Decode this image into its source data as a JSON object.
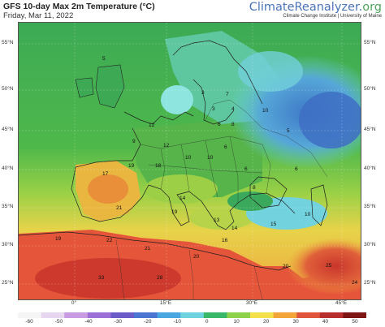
{
  "header": {
    "title": "GFS 10-day Max 2m Temperature (°C)",
    "date": "Friday, Mar 11, 2022",
    "brand_main": "ClimateReanalyzer.",
    "brand_tld": "org",
    "brand_sub": "Climate Change Institute | University of Maine"
  },
  "lat_labels_left": [
    "55°N",
    "50°N",
    "45°N",
    "40°N",
    "35°N",
    "30°N",
    "25°N"
  ],
  "lat_labels_right": [
    "55°N",
    "50°N",
    "45°N",
    "40°N",
    "35°N",
    "30°N",
    "25°N"
  ],
  "lon_labels": [
    "0°",
    "15°E",
    "30°E",
    "45°E"
  ],
  "scale": {
    "ticks": [
      "-60",
      "-50",
      "-40",
      "-30",
      "-20",
      "-10",
      "0",
      "10",
      "20",
      "30",
      "40",
      "50"
    ],
    "colors": [
      "#f5f5f5",
      "#e7d6ef",
      "#c89be3",
      "#9d6fd8",
      "#6a5bc9",
      "#4c74d3",
      "#4aa6e0",
      "#6fd3df",
      "#39b86a",
      "#8ed14b",
      "#f3e04a",
      "#f3a53a",
      "#e0553c",
      "#b82d2d",
      "#7f1515"
    ]
  },
  "temperature_labels": [
    {
      "value": "5"
    },
    {
      "value": "3"
    },
    {
      "value": "7"
    },
    {
      "value": "3"
    },
    {
      "value": "4"
    },
    {
      "value": "6"
    },
    {
      "value": "8"
    },
    {
      "value": "10"
    },
    {
      "value": "10"
    },
    {
      "value": "6"
    },
    {
      "value": "12"
    },
    {
      "value": "9"
    },
    {
      "value": "17"
    },
    {
      "value": "19"
    },
    {
      "value": "18"
    },
    {
      "value": "6"
    },
    {
      "value": "6"
    },
    {
      "value": "8"
    },
    {
      "value": "14"
    },
    {
      "value": "21"
    },
    {
      "value": "19"
    },
    {
      "value": "13"
    },
    {
      "value": "14"
    },
    {
      "value": "15"
    },
    {
      "value": "10"
    },
    {
      "value": "16"
    },
    {
      "value": "19"
    },
    {
      "value": "22"
    },
    {
      "value": "21"
    },
    {
      "value": "20"
    },
    {
      "value": "20"
    },
    {
      "value": "33"
    },
    {
      "value": "28"
    },
    {
      "value": "25"
    },
    {
      "value": "24"
    },
    {
      "value": "10"
    },
    {
      "value": "5"
    },
    {
      "value": "12"
    }
  ]
}
